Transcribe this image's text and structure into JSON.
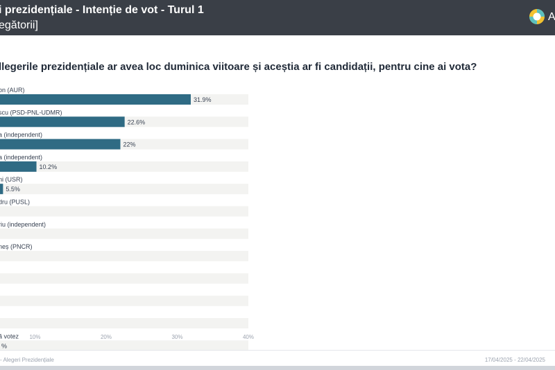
{
  "header": {
    "title": "i prezidențiale - Intenție de vot - Turul 1",
    "subtitle": "egătorii]",
    "logo_text": "A",
    "logo_icon": "logo-icon"
  },
  "question": "llegerile prezidențiale ar avea loc duminica viitoare și aceștia ar fi candidații, pentru cine ai vota?",
  "chart_data": {
    "type": "bar",
    "orientation": "horizontal",
    "categories": [
      "on (AUR)",
      "scu (PSD-PNL-UDMR)",
      "a (independent)",
      "a (independent)",
      "ni (USR)",
      "dru (PUSL)",
      "riu (independent)",
      "neș (PNCR)",
      "",
      "",
      "",
      "ă votez"
    ],
    "values": [
      31.9,
      22.6,
      22,
      10.2,
      5.5,
      null,
      null,
      null,
      null,
      null,
      null,
      null
    ],
    "value_labels": [
      "31.9%",
      "22.6%",
      "22%",
      "10.2%",
      "5.5%",
      "",
      "",
      "",
      "",
      "",
      "",
      "%"
    ],
    "x_ticks": [
      "10%",
      "20%",
      "30%",
      "40%"
    ],
    "xlim": [
      0,
      40
    ],
    "grid": false,
    "legend": "none",
    "colors": {
      "bar": "#2f6b84",
      "track": "#f3f3f1"
    }
  },
  "footer": {
    "left": "- Alegeri Prezidențiale",
    "right": "17/04/2025 - 22/04/2025"
  }
}
